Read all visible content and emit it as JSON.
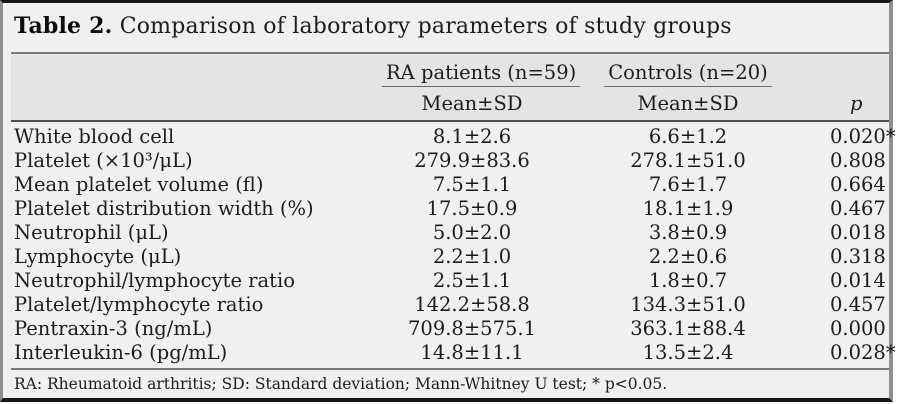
{
  "title": {
    "label": "Table 2.",
    "text": "Comparison of laboratory parameters of study groups"
  },
  "header": {
    "group_ra": "RA patients (n=59)",
    "group_controls": "Controls (n=20)",
    "sub_ra": "Mean±SD",
    "sub_controls": "Mean±SD",
    "p": "p"
  },
  "rows": [
    {
      "label": "White blood cell",
      "ra": "8.1±2.6",
      "controls": "6.6±1.2",
      "p": "0.020*"
    },
    {
      "label": "Platelet (×10³/μL)",
      "ra": "279.9±83.6",
      "controls": "278.1±51.0",
      "p": "0.808"
    },
    {
      "label": "Mean platelet volume (fl)",
      "ra": "7.5±1.1",
      "controls": "7.6±1.7",
      "p": "0.664"
    },
    {
      "label": "Platelet distribution width (%)",
      "ra": "17.5±0.9",
      "controls": "18.1±1.9",
      "p": "0.467"
    },
    {
      "label": "Neutrophil (μL)",
      "ra": "5.0±2.0",
      "controls": "3.8±0.9",
      "p": "0.018"
    },
    {
      "label": "Lymphocyte (μL)",
      "ra": "2.2±1.0",
      "controls": "2.2±0.6",
      "p": "0.318"
    },
    {
      "label": "Neutrophil/lymphocyte ratio",
      "ra": "2.5±1.1",
      "controls": "1.8±0.7",
      "p": "0.014"
    },
    {
      "label": "Platelet/lymphocyte ratio",
      "ra": "142.2±58.8",
      "controls": "134.3±51.0",
      "p": "0.457"
    },
    {
      "label": "Pentraxin-3 (ng/mL)",
      "ra": "709.8±575.1",
      "controls": "363.1±88.4",
      "p": "0.000"
    },
    {
      "label": "Interleukin-6 (pg/mL)",
      "ra": "14.8±11.1",
      "controls": "13.5±2.4",
      "p": "0.028*"
    }
  ],
  "footnote": "RA: Rheumatoid arthritis; SD: Standard deviation; Mann-Whitney U test; * p<0.05.",
  "colors": {
    "card_background": "#f0f0ee",
    "header_band_background": "#e4e4e2",
    "frame_dark": "#141414",
    "frame_gray": "#8f8f8f",
    "rule_gray": "#7a7a7a",
    "rule_dark": "#4e4e4e",
    "text": "#1c1c1c"
  }
}
